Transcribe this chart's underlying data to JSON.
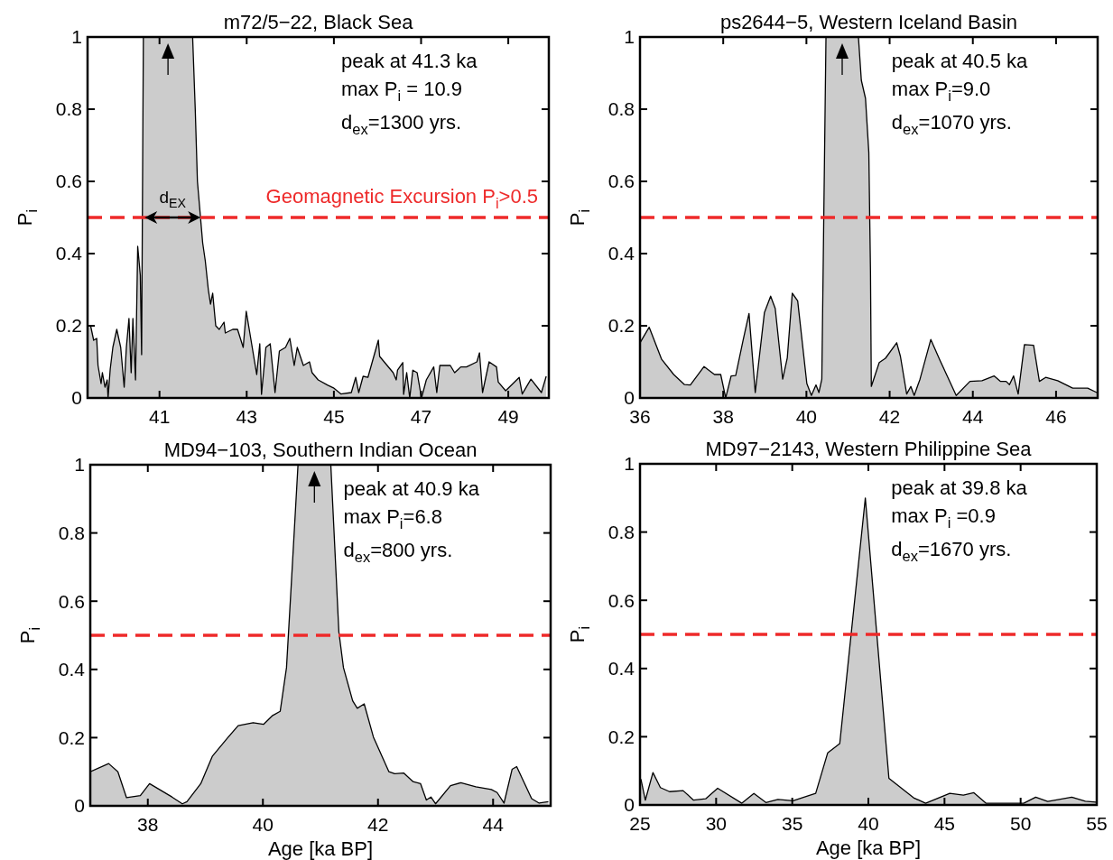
{
  "chart_data": [
    {
      "type": "area",
      "title": "m72/5−22, Black Sea",
      "ylabel": "P$_{i}$",
      "color": "#cccccc",
      "xlim": [
        39.35,
        49.93
      ],
      "ylim": [
        0,
        1
      ],
      "xticks": [
        41,
        43,
        45,
        47,
        49
      ],
      "yticks": [
        0,
        0.2,
        0.4,
        0.6,
        0.8,
        1
      ],
      "x": [
        39.35,
        39.42,
        39.49,
        39.56,
        39.59,
        39.66,
        39.69,
        39.75,
        39.8,
        39.82,
        39.87,
        39.93,
        40.02,
        40.11,
        40.19,
        40.24,
        40.3,
        40.35,
        40.39,
        40.45,
        40.5,
        40.56,
        40.59,
        40.63,
        41.76,
        41.82,
        41.87,
        41.99,
        42.05,
        42.12,
        42.17,
        42.22,
        42.29,
        42.37,
        42.48,
        42.51,
        42.68,
        42.79,
        42.92,
        42.99,
        43.23,
        43.3,
        43.34,
        43.44,
        43.54,
        43.65,
        43.75,
        43.89,
        43.99,
        44.09,
        44.16,
        44.3,
        44.44,
        44.5,
        44.64,
        44.85,
        44.99,
        45.16,
        45.4,
        45.5,
        45.57,
        45.67,
        45.78,
        46.02,
        46.05,
        46.36,
        46.43,
        46.46,
        46.58,
        46.6,
        46.67,
        46.74,
        46.81,
        46.91,
        47.01,
        47.12,
        47.29,
        47.36,
        47.43,
        47.67,
        47.77,
        47.91,
        48.04,
        48.28,
        48.34,
        48.41,
        48.56,
        48.73,
        48.77,
        48.94,
        49.25,
        49.32,
        49.52,
        49.76,
        49.87
      ],
      "values": [
        0.2,
        0.2,
        0.16,
        0.165,
        0.09,
        0.04,
        0.07,
        0.03,
        0.05,
        0,
        0.08,
        0.14,
        0.19,
        0.14,
        0.03,
        0.14,
        0.22,
        0.07,
        0.22,
        0.05,
        0.42,
        0.34,
        0.12,
        1,
        1,
        0.8,
        0.6,
        0.43,
        0.38,
        0.3,
        0.26,
        0.29,
        0.2,
        0.19,
        0.21,
        0.18,
        0.19,
        0.19,
        0.14,
        0.24,
        0.065,
        0.15,
        0.01,
        0.14,
        0.15,
        0.015,
        0.13,
        0.14,
        0.165,
        0.09,
        0.14,
        0.09,
        0.1,
        0.07,
        0.05,
        0.036,
        0.028,
        0.011,
        0.015,
        0.057,
        0.015,
        0.06,
        0.057,
        0.16,
        0.115,
        0.07,
        0.05,
        0.077,
        0.098,
        0.01,
        0.07,
        0,
        0.077,
        0.07,
        0,
        0.05,
        0.086,
        0.015,
        0.09,
        0.09,
        0.07,
        0.086,
        0.086,
        0.1,
        0.125,
        0.015,
        0.1,
        0.086,
        0.044,
        0.02,
        0.057,
        0.011,
        0.052,
        0.015,
        0.06
      ],
      "ref_lines": [
        {
          "axis": "y",
          "value": 0.5,
          "label": "Geomagnetic Excursion P$_{i}$>0.5",
          "color": "#ee2a2a",
          "line_style": "dashed"
        }
      ],
      "annotations": [
        "peak at 41.3 ka",
        "max P$_{i}$ = 10.9",
        "d$_{ex}$=1300 yrs.",
        {
          "text": "d$_{EX}$",
          "x": 41.3,
          "y": 0.5
        }
      ]
    },
    {
      "type": "area",
      "title": "ps2644−5, Western Iceland Basin",
      "ylabel": "P$_{i}$",
      "color": "#cccccc",
      "xlim": [
        36,
        47
      ],
      "ylim": [
        0,
        1
      ],
      "xticks": [
        36,
        38,
        40,
        42,
        44,
        46
      ],
      "yticks": [
        0,
        0.2,
        0.4,
        0.6,
        0.8,
        1
      ],
      "x": [
        36,
        36.22,
        36.52,
        36.81,
        37.07,
        37.21,
        37.54,
        37.79,
        37.94,
        38.06,
        38.19,
        38.3,
        38.48,
        38.62,
        38.77,
        38.99,
        39.14,
        39.25,
        39.43,
        39.54,
        39.66,
        39.79,
        40.01,
        40.12,
        40.23,
        40.3,
        40.37,
        40.47,
        41.25,
        41.32,
        41.42,
        41.5,
        41.54,
        41.56,
        41.75,
        41.9,
        42.17,
        42.26,
        42.41,
        42.51,
        42.59,
        42.73,
        42.99,
        43.2,
        43.6,
        43.93,
        44.22,
        44.51,
        44.66,
        44.8,
        44.88,
        44.98,
        45.09,
        45.24,
        45.46,
        45.6,
        45.75,
        46.04,
        46.4,
        46.76,
        46.98
      ],
      "values": [
        0.153,
        0.196,
        0.107,
        0.065,
        0.037,
        0.036,
        0.087,
        0.065,
        0.065,
        0,
        0.061,
        0.062,
        0.161,
        0.234,
        0.015,
        0.236,
        0.282,
        0.248,
        0.052,
        0.111,
        0.29,
        0.269,
        0.04,
        0.007,
        0.036,
        0.015,
        0.052,
        1,
        1,
        0.88,
        0.83,
        0.68,
        0.35,
        0.032,
        0.098,
        0.11,
        0.153,
        0.115,
        0.011,
        0.032,
        0.007,
        0.052,
        0.162,
        0.107,
        0.007,
        0.046,
        0.048,
        0.061,
        0.046,
        0.046,
        0.037,
        0.061,
        0.011,
        0.148,
        0.146,
        0.046,
        0.057,
        0.048,
        0.027,
        0.027,
        0.015
      ],
      "ref_lines": [
        {
          "axis": "y",
          "value": 0.5,
          "color": "#ee2a2a",
          "line_style": "dashed"
        }
      ],
      "annotations": [
        "peak at 40.5 ka",
        "max P$_{i}$=9.0",
        "d$_{ex}$=1070 yrs."
      ]
    },
    {
      "type": "area",
      "title": "MD94−103, Southern Indian Ocean",
      "xlabel": "Age [ka BP]",
      "ylabel": "P$_{i}$",
      "color": "#cccccc",
      "xlim": [
        37,
        45
      ],
      "ylim": [
        0,
        1
      ],
      "xticks": [
        38,
        40,
        42,
        44
      ],
      "yticks": [
        0,
        0.2,
        0.4,
        0.6,
        0.8,
        1
      ],
      "x": [
        37,
        37.32,
        37.48,
        37.63,
        37.87,
        38.03,
        38.42,
        38.6,
        38.68,
        38.92,
        39.12,
        39.39,
        39.57,
        39.83,
        40.01,
        40.17,
        40.3,
        40.41,
        40.49,
        40.61,
        41.18,
        41.32,
        41.4,
        41.56,
        41.64,
        41.76,
        41.92,
        42.19,
        42.29,
        42.45,
        42.61,
        42.74,
        42.84,
        42.92,
        43,
        43.26,
        43.44,
        43.7,
        43.97,
        44.07,
        44.19,
        44.33,
        44.41,
        44.67,
        44.8,
        44.96
      ],
      "values": [
        0.1,
        0.124,
        0.1,
        0.024,
        0.03,
        0.065,
        0.026,
        0.006,
        0.012,
        0.065,
        0.145,
        0.2,
        0.235,
        0.244,
        0.239,
        0.265,
        0.277,
        0.405,
        0.64,
        1,
        1,
        0.51,
        0.405,
        0.308,
        0.286,
        0.299,
        0.202,
        0.1,
        0.094,
        0.096,
        0.071,
        0.065,
        0.017,
        0.026,
        0.006,
        0.059,
        0.068,
        0.056,
        0.048,
        0.039,
        0.008,
        0.107,
        0.115,
        0.021,
        0.008,
        0.012
      ],
      "ref_lines": [
        {
          "axis": "y",
          "value": 0.5,
          "color": "#ee2a2a",
          "line_style": "dashed"
        }
      ],
      "annotations": [
        "peak at 40.9 ka",
        "max P$_{i}$=6.8",
        "d$_{ex}$=800 yrs."
      ]
    },
    {
      "type": "area",
      "title": "MD97−2143, Western Philippine Sea",
      "xlabel": "Age [ka BP]",
      "ylabel": "P$_{i}$",
      "color": "#cccccc",
      "xlim": [
        25,
        55
      ],
      "ylim": [
        0,
        1
      ],
      "xticks": [
        25,
        30,
        35,
        40,
        45,
        50,
        55
      ],
      "yticks": [
        0,
        0.2,
        0.4,
        0.6,
        0.8,
        1
      ],
      "x": [
        25.06,
        25.35,
        25.85,
        26.34,
        26.94,
        27.83,
        28.52,
        29.31,
        30.1,
        31.69,
        32.48,
        33.27,
        34.06,
        35.05,
        36.54,
        37.33,
        38.12,
        39.8,
        41.35,
        42.97,
        43.76,
        45.35,
        46.24,
        46.93,
        47.72,
        50.2,
        50.99,
        51.78,
        53.36,
        54.25,
        54.95
      ],
      "values": [
        0.076,
        0.014,
        0.095,
        0.051,
        0.039,
        0.042,
        0.014,
        0.018,
        0.049,
        0.005,
        0.034,
        0.007,
        0.016,
        0.012,
        0.034,
        0.153,
        0.18,
        0.9,
        0.078,
        0.021,
        0.005,
        0.034,
        0.029,
        0.036,
        0.005,
        0.005,
        0.023,
        0.01,
        0.023,
        0.011,
        0.008
      ],
      "ref_lines": [
        {
          "axis": "y",
          "value": 0.5,
          "color": "#ee2a2a",
          "line_style": "dashed"
        }
      ],
      "annotations": [
        "peak at 39.8 ka",
        "max P$_{i}$ =0.9",
        "d$_{ex}$=1670 yrs."
      ]
    }
  ]
}
